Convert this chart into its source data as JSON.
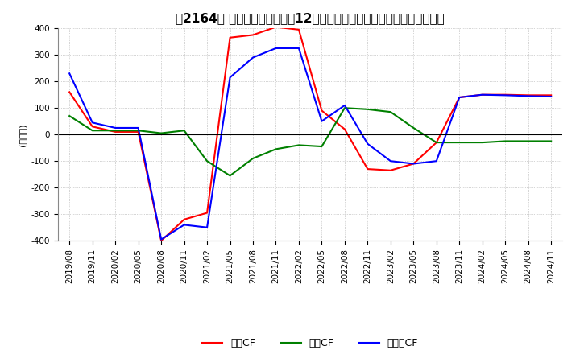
{
  "title": "　2164、 キャッシュフローの12か月移動合計の対前年同期増減額の推移",
  "ylabel": "(百万円)",
  "ylim": [
    -400,
    400
  ],
  "yticks": [
    -400,
    -300,
    -200,
    -100,
    0,
    100,
    200,
    300,
    400
  ],
  "legend_labels": [
    "営業CF",
    "投資CF",
    "フリーCF"
  ],
  "colors": {
    "営業CF": "#ff0000",
    "投資CF": "#008000",
    "フリーCF": "#0000ff"
  },
  "x_labels": [
    "2019/08",
    "2019/11",
    "2020/02",
    "2020/05",
    "2020/08",
    "2020/11",
    "2021/02",
    "2021/05",
    "2021/08",
    "2021/11",
    "2022/02",
    "2022/05",
    "2022/08",
    "2022/11",
    "2023/02",
    "2023/05",
    "2023/08",
    "2023/11",
    "2024/02",
    "2024/05",
    "2024/08",
    "2024/11"
  ],
  "series": {
    "営業CF": [
      160,
      30,
      10,
      10,
      -400,
      -320,
      -295,
      365,
      375,
      405,
      395,
      90,
      20,
      -130,
      -135,
      -110,
      -30,
      140,
      150,
      150,
      148,
      148
    ],
    "投資CF": [
      70,
      15,
      15,
      15,
      5,
      15,
      -100,
      -155,
      -90,
      -55,
      -40,
      -45,
      100,
      95,
      85,
      25,
      -30,
      -30,
      -30,
      -25,
      -25,
      -25
    ],
    "フリーCF": [
      230,
      45,
      25,
      25,
      -395,
      -340,
      -350,
      215,
      290,
      325,
      325,
      50,
      110,
      -35,
      -100,
      -110,
      -100,
      140,
      150,
      148,
      145,
      143
    ]
  },
  "background_color": "#ffffff",
  "grid_color": "#aaaaaa",
  "title_fontsize": 11,
  "tick_fontsize": 7.5,
  "ylabel_fontsize": 8
}
